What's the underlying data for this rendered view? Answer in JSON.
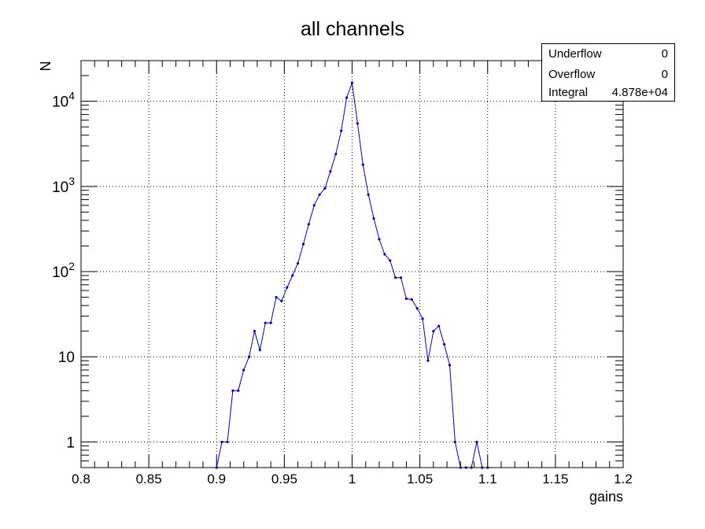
{
  "colors": {
    "series": "#0000cc",
    "axis": "#000000",
    "grid": "#000000",
    "background": "#ffffff"
  },
  "stats": {
    "rows": [
      {
        "label": "Underflow",
        "value": "0"
      },
      {
        "label": "Overflow",
        "value": "0"
      },
      {
        "label": "Integral",
        "value": "4.878e+04"
      }
    ]
  },
  "chart_data": {
    "type": "line",
    "title": "all channels",
    "xlabel": "gains",
    "ylabel": "N",
    "xlim": [
      0.8,
      1.2
    ],
    "ylim": [
      0.5,
      30000
    ],
    "yscale": "log",
    "grid": true,
    "x_ticks": [
      "0.8",
      "0.85",
      "0.9",
      "0.95",
      "1",
      "1.05",
      "1.1",
      "1.15",
      "1.2"
    ],
    "y_ticks": [
      "1",
      "10",
      "10^2",
      "10^3",
      "10^4"
    ],
    "series": [
      {
        "x": [
          0.9,
          0.904,
          0.908,
          0.912,
          0.916,
          0.92,
          0.924,
          0.928,
          0.932,
          0.936,
          0.94,
          0.944,
          0.948,
          0.952,
          0.956,
          0.96,
          0.964,
          0.968,
          0.972,
          0.976,
          0.98,
          0.984,
          0.988,
          0.992,
          0.996,
          1.0,
          1.004,
          1.008,
          1.012,
          1.016,
          1.02,
          1.024,
          1.028,
          1.032,
          1.036,
          1.04,
          1.044,
          1.048,
          1.052,
          1.056,
          1.06,
          1.064,
          1.068,
          1.072,
          1.076,
          1.08,
          1.084,
          1.088,
          1.092,
          1.096,
          1.1
        ],
        "y": [
          0.5,
          1,
          1,
          4,
          4,
          7,
          10,
          20,
          12,
          25,
          25,
          50,
          45,
          65,
          90,
          125,
          210,
          360,
          600,
          800,
          950,
          1500,
          2400,
          4500,
          11000,
          16500,
          5500,
          1800,
          800,
          420,
          240,
          160,
          135,
          85,
          85,
          48,
          47,
          37,
          28,
          9,
          20,
          23,
          14,
          8,
          1,
          0.5,
          0.5,
          0.5,
          1,
          0.5,
          0.5
        ]
      }
    ]
  }
}
